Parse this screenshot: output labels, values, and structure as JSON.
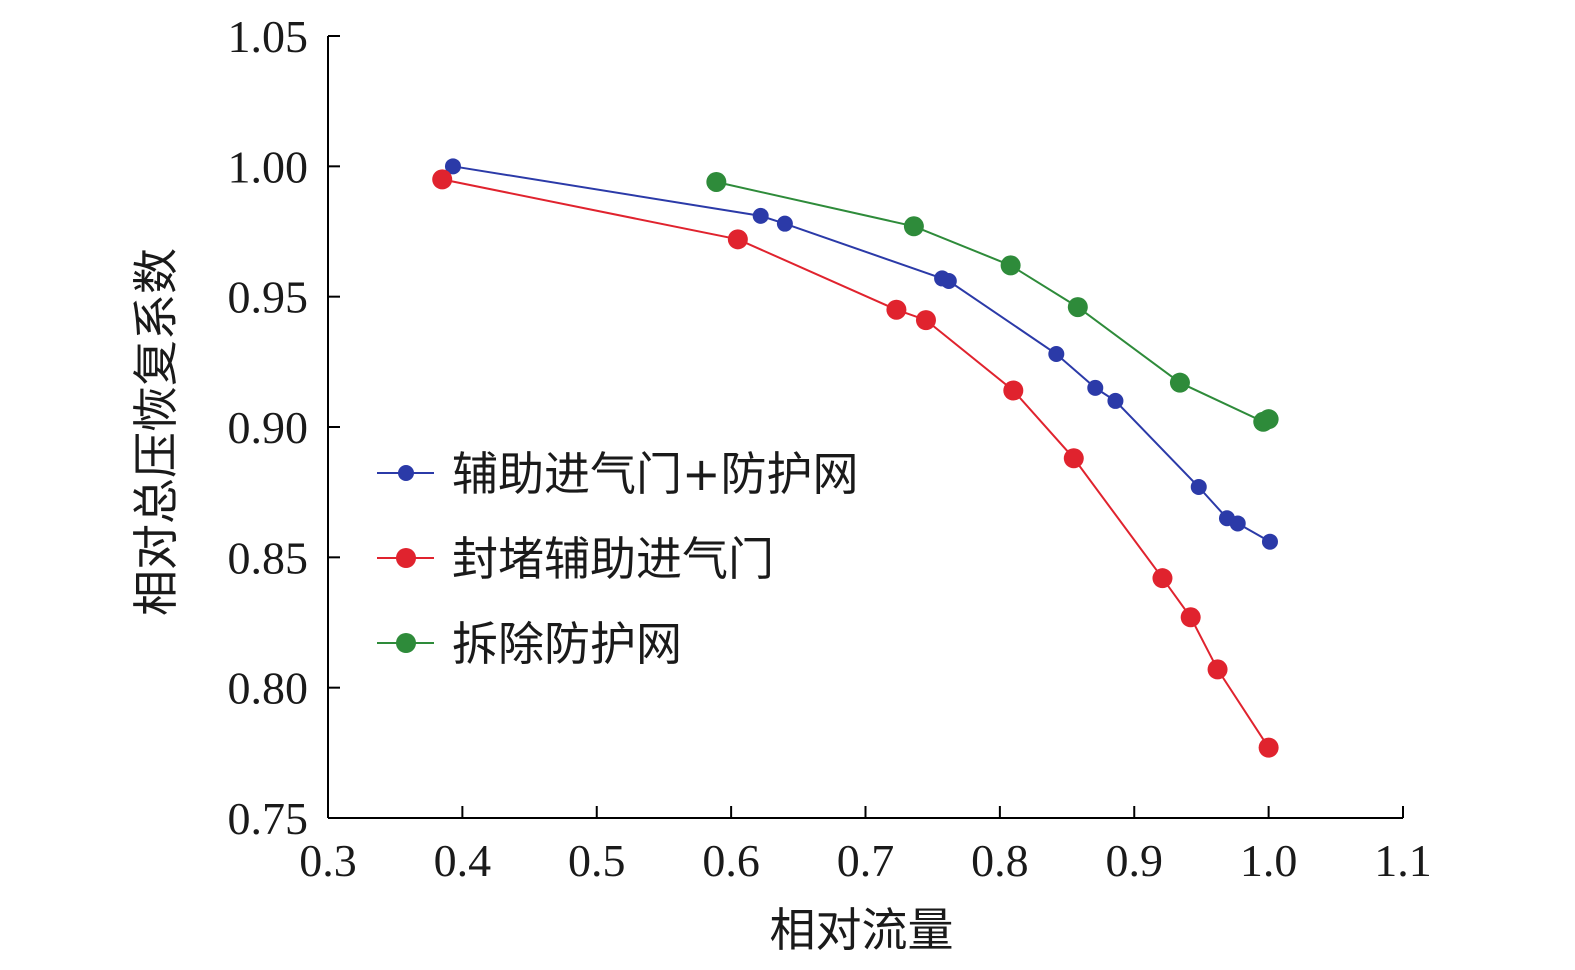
{
  "chart_data": {
    "type": "line",
    "xlabel": "相对流量",
    "ylabel": "相对总压恢复系数",
    "xlim": [
      0.3,
      1.1
    ],
    "ylim": [
      0.75,
      1.05
    ],
    "xticks": [
      "0.3",
      "0.4",
      "0.5",
      "0.6",
      "0.7",
      "0.8",
      "0.9",
      "1.0",
      "1.1"
    ],
    "yticks": [
      "0.75",
      "0.80",
      "0.85",
      "0.90",
      "0.95",
      "1.00",
      "1.05"
    ],
    "grid": false,
    "legend_position": "center-left",
    "series": [
      {
        "name": "辅助进气门+防护网",
        "color": "#2b3aa8",
        "marker_radius": 8,
        "x": [
          0.393,
          0.622,
          0.64,
          0.757,
          0.762,
          0.842,
          0.871,
          0.886,
          0.948,
          0.969,
          0.977,
          1.001
        ],
        "y": [
          1.0,
          0.981,
          0.978,
          0.957,
          0.956,
          0.928,
          0.915,
          0.91,
          0.877,
          0.865,
          0.863,
          0.856
        ]
      },
      {
        "name": "封堵辅助进气门",
        "color": "#e0232e",
        "marker_radius": 10,
        "x": [
          0.385,
          0.605,
          0.723,
          0.745,
          0.81,
          0.855,
          0.921,
          0.942,
          0.962,
          1.0
        ],
        "y": [
          0.995,
          0.972,
          0.945,
          0.941,
          0.914,
          0.888,
          0.842,
          0.827,
          0.807,
          0.777
        ]
      },
      {
        "name": "拆除防护网",
        "color": "#2e8b3a",
        "marker_radius": 10,
        "x": [
          0.589,
          0.736,
          0.808,
          0.858,
          0.934,
          0.996,
          1.0
        ],
        "y": [
          0.994,
          0.977,
          0.962,
          0.946,
          0.917,
          0.902,
          0.903
        ]
      }
    ]
  }
}
